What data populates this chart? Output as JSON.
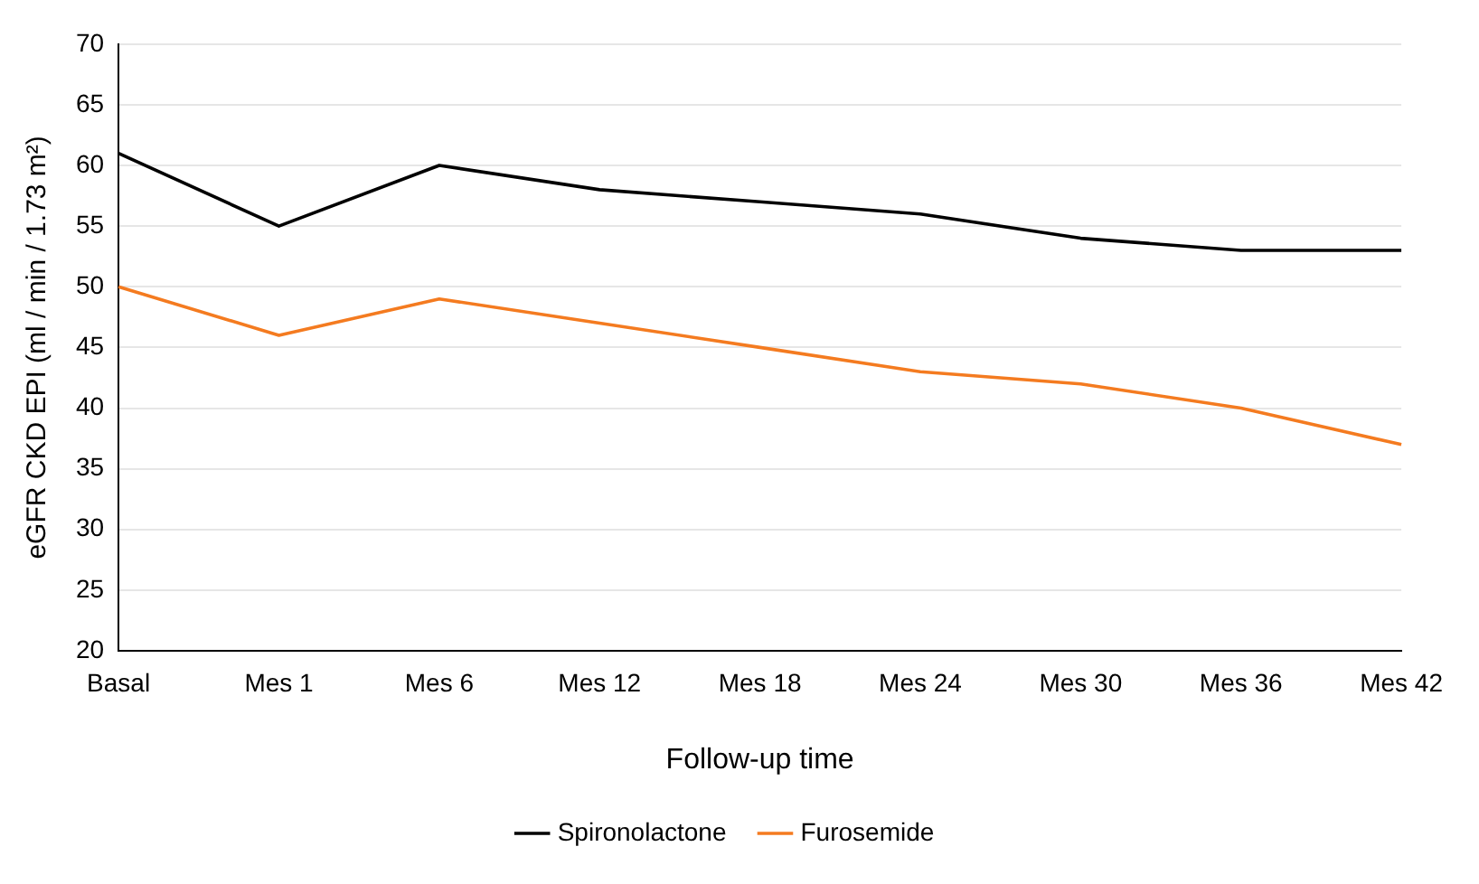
{
  "chart_data": {
    "type": "line",
    "xlabel": "Follow-up time",
    "ylabel": "eGFR CKD EPI (ml / min / 1.73 m²)",
    "categories": [
      "Basal",
      "Mes 1",
      "Mes 6",
      "Mes 12",
      "Mes 18",
      "Mes 24",
      "Mes 30",
      "Mes 36",
      "Mes 42"
    ],
    "series": [
      {
        "name": "Spironolactone",
        "color": "#000000",
        "values": [
          61,
          55,
          60,
          58,
          57,
          56,
          54,
          53,
          53
        ]
      },
      {
        "name": "Furosemide",
        "color": "#f47b20",
        "values": [
          50,
          46,
          49,
          47,
          45,
          43,
          42,
          40,
          37
        ]
      }
    ],
    "ylim": [
      20,
      70
    ],
    "yticks": [
      20,
      25,
      30,
      35,
      40,
      45,
      50,
      55,
      60,
      65,
      70
    ],
    "grid": "y",
    "legend": "bottom",
    "marker": "none",
    "line_style": "solid"
  }
}
